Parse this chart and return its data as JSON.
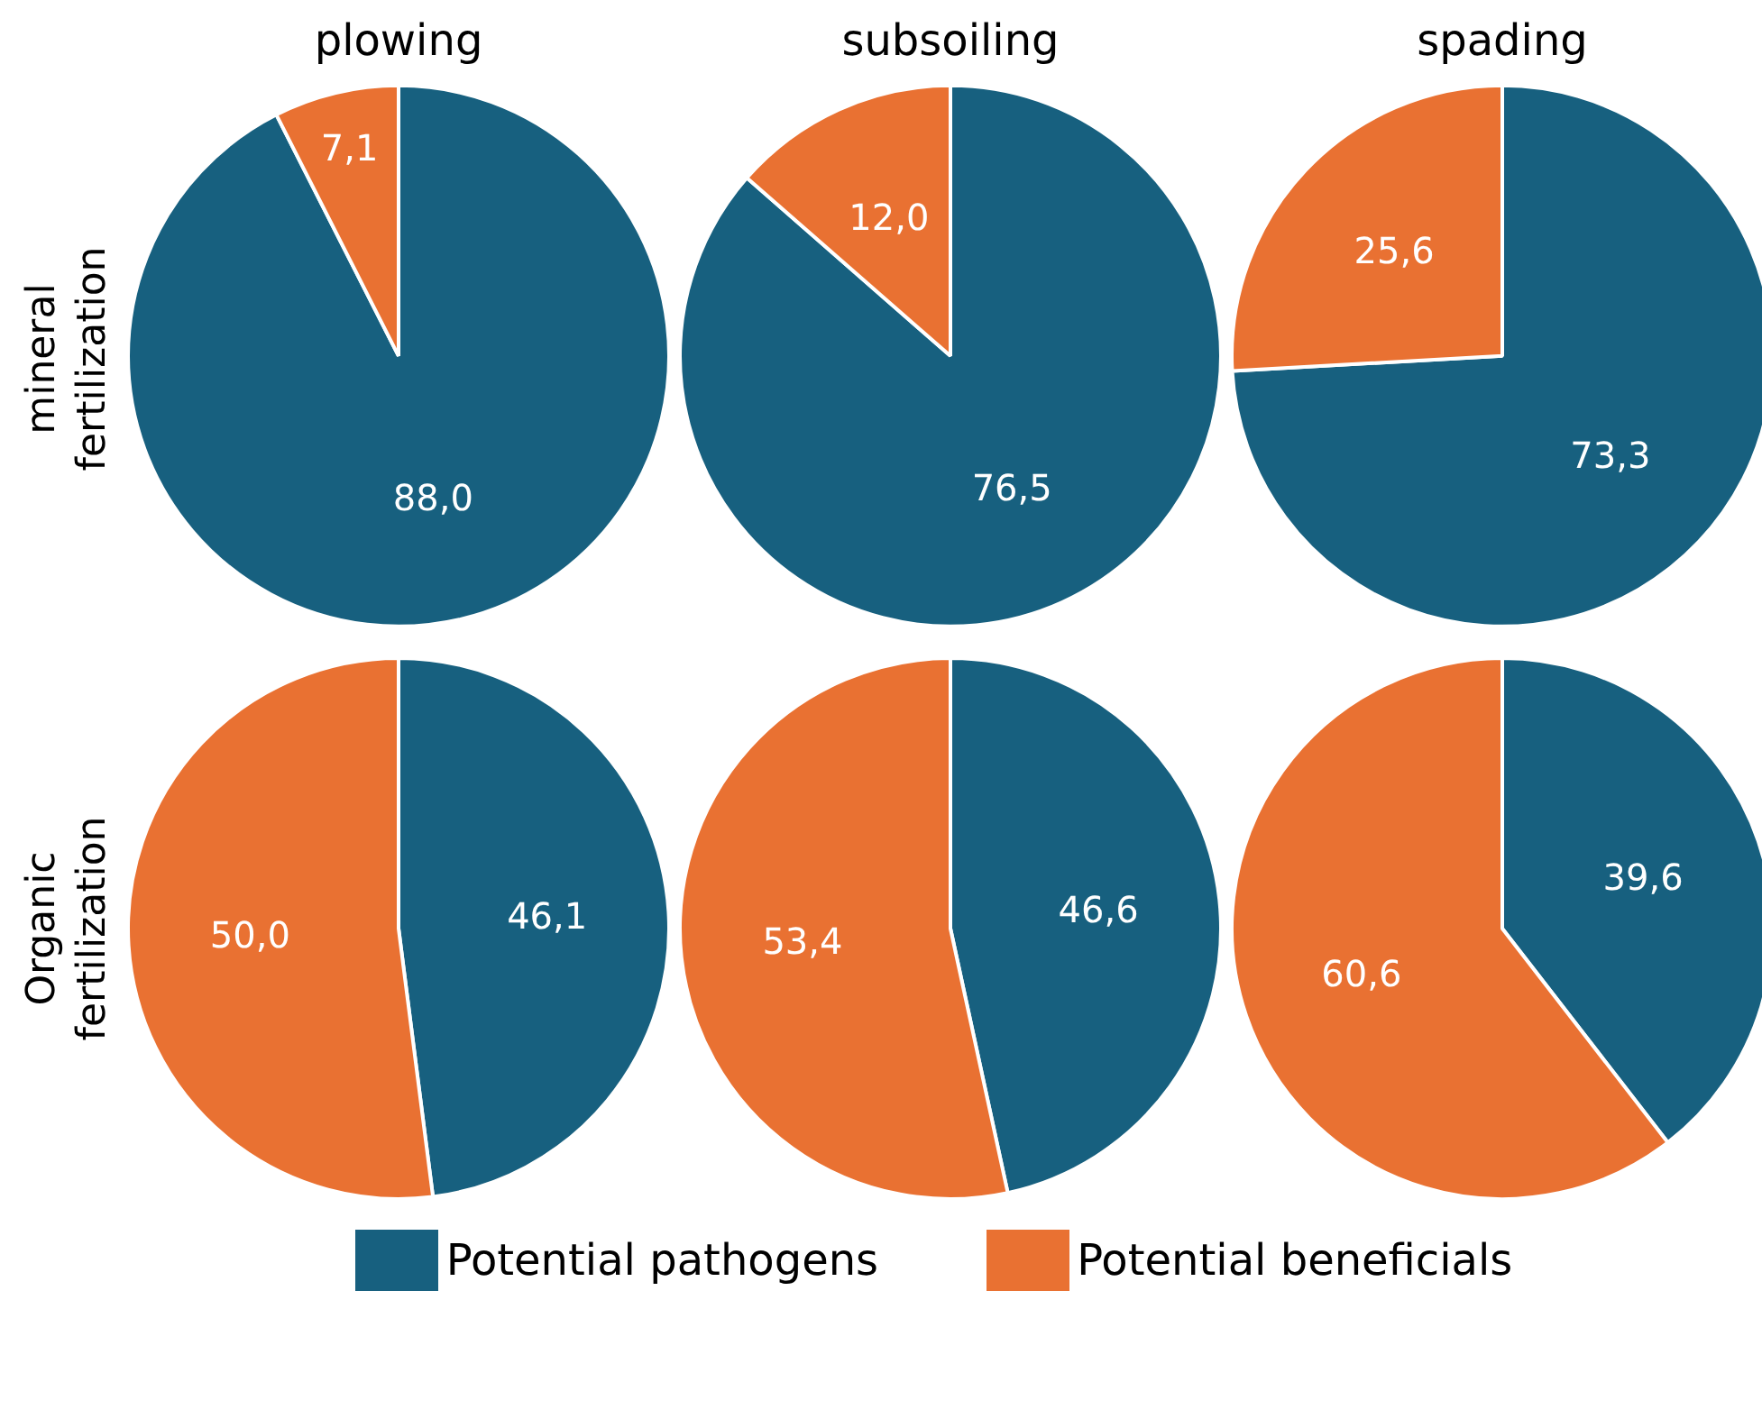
{
  "chart_data": [
    {
      "type": "pie",
      "title": "plowing",
      "ylabel": "mineral fertilization",
      "categories": [
        "Potential pathogens",
        "Potential beneficials"
      ],
      "values": [
        88.0,
        7.1
      ],
      "colors": [
        "#17607f",
        "#e97132"
      ],
      "value_labels": [
        "88,0",
        "7,1"
      ],
      "legend": "bottom"
    },
    {
      "type": "pie",
      "title": "subsoiling",
      "categories": [
        null,
        null
      ],
      "values": [
        76.5,
        12.0
      ],
      "colors": [
        "#17607f",
        "#e97132"
      ],
      "value_labels": [
        "76,5",
        "12,0"
      ]
    },
    {
      "type": "pie",
      "title": "spading",
      "categories": [
        null,
        null
      ],
      "values": [
        73.3,
        25.6
      ],
      "colors": [
        "#17607f",
        "#e97132"
      ],
      "value_labels": [
        "73,3",
        "25,6"
      ]
    },
    {
      "type": "pie",
      "ylabel": "Organic fertilization",
      "categories": [
        null,
        null
      ],
      "values": [
        46.1,
        50.0
      ],
      "colors": [
        "#17607f",
        "#e97132"
      ],
      "value_labels": [
        "46,1",
        "50,0"
      ]
    },
    {
      "type": "pie",
      "categories": [
        null,
        null
      ],
      "values": [
        46.6,
        53.4
      ],
      "colors": [
        "#17607f",
        "#e97132"
      ],
      "value_labels": [
        "46,6",
        "53,4"
      ]
    },
    {
      "type": "pie",
      "categories": [
        null,
        null
      ],
      "values": [
        39.6,
        60.6
      ],
      "colors": [
        "#17607f",
        "#e97132"
      ],
      "value_labels": [
        "39,6",
        "60,6"
      ]
    }
  ]
}
